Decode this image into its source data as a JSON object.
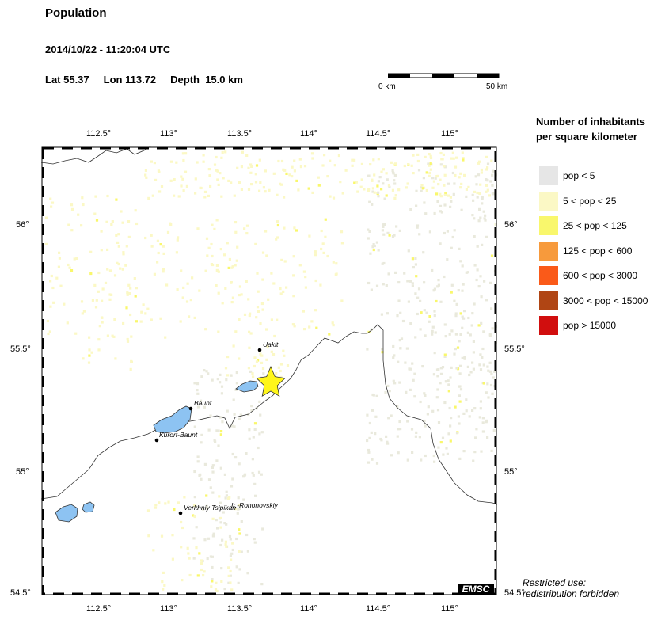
{
  "header": {
    "title": "Population",
    "datetime": "2014/10/22 - 11:20:04 UTC",
    "lat": "Lat 55.37",
    "lon": "Lon 113.72",
    "depth": "Depth  15.0 km"
  },
  "scale_bar": {
    "left_label": "0 km",
    "right_label": "50 km"
  },
  "axes": {
    "lon_ticks": [
      "112.5°",
      "113°",
      "113.5°",
      "114°",
      "114.5°",
      "115°"
    ],
    "lat_ticks": [
      "56°",
      "55.5°",
      "55°",
      "54.5°"
    ]
  },
  "places": [
    {
      "name": "Uakit"
    },
    {
      "name": "Baunt"
    },
    {
      "name": "Kurort-Baunt"
    },
    {
      "name": "Verkhniy Tsipikan"
    },
    {
      "name": "Ir.-Rononovskiy"
    }
  ],
  "legend": {
    "title_line1": "Number of inhabitants",
    "title_line2": "per square kilometer",
    "items": [
      {
        "label": "pop < 5",
        "color": "#e6e6e6"
      },
      {
        "label": "5 < pop < 25",
        "color": "#fbf8c5"
      },
      {
        "label": "25 < pop < 125",
        "color": "#f9f76c"
      },
      {
        "label": "125 < pop < 600",
        "color": "#f79a3c"
      },
      {
        "label": "600 < pop < 3000",
        "color": "#fa5a19"
      },
      {
        "label": "3000 < pop < 15000",
        "color": "#b04514"
      },
      {
        "label": "pop > 15000",
        "color": "#d10e0e"
      }
    ]
  },
  "footer": {
    "restricted_line1": "Restricted use:",
    "restricted_line2": "redistribution forbidden",
    "logo": "EMSC"
  },
  "colors": {
    "lake": "#8dc3f2",
    "epicenter": "#fff61a",
    "land_low": "#e9e9dc",
    "land_mid": "#fbf8c5"
  }
}
